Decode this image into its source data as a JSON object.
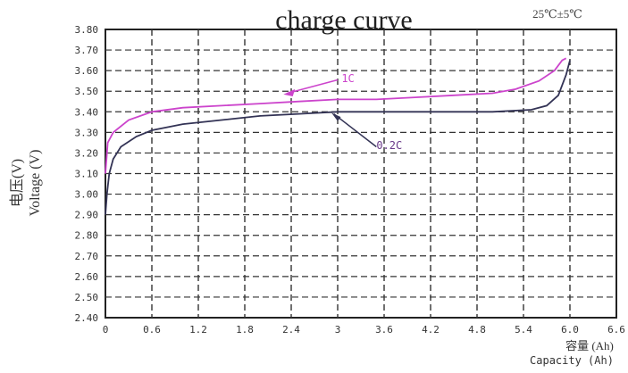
{
  "chart_data": {
    "type": "line",
    "title": "charge curve",
    "condition": "25℃±5℃",
    "ylabel_cn": "电压(V)",
    "ylabel_en": "Voltage (V)",
    "xlabel_cn": "容量 (Ah)",
    "xlabel_en": "Capacity (Ah)",
    "xlim": [
      0,
      6.6
    ],
    "ylim": [
      2.4,
      3.8
    ],
    "x_ticks": [
      "0",
      "0.6",
      "1.2",
      "1.8",
      "2.4",
      "3",
      "3.6",
      "4.2",
      "4.8",
      "5.4",
      "6.0",
      "6.6"
    ],
    "y_ticks": [
      "3.80",
      "3.70",
      "3.60",
      "3.50",
      "3.40",
      "3.30",
      "3.20",
      "3.10",
      "3.00",
      "2.90",
      "2.80",
      "2.70",
      "2.60",
      "2.50",
      "2.40"
    ],
    "grid": true,
    "series": [
      {
        "name": "1C",
        "color": "#cc44cc",
        "x": [
          0,
          0.03,
          0.1,
          0.3,
          0.6,
          1.0,
          1.5,
          2.0,
          2.5,
          3.0,
          3.5,
          4.0,
          4.5,
          5.0,
          5.3,
          5.6,
          5.8,
          5.9,
          5.95
        ],
        "y": [
          3.1,
          3.25,
          3.3,
          3.36,
          3.4,
          3.42,
          3.43,
          3.44,
          3.45,
          3.46,
          3.46,
          3.47,
          3.48,
          3.49,
          3.51,
          3.55,
          3.6,
          3.65,
          3.66
        ]
      },
      {
        "name": "0.2C",
        "color": "#333355",
        "x": [
          0,
          0.02,
          0.05,
          0.1,
          0.2,
          0.4,
          0.6,
          1.0,
          1.5,
          2.0,
          2.5,
          3.0,
          3.5,
          4.0,
          4.5,
          5.0,
          5.5,
          5.7,
          5.85,
          5.95,
          6.0
        ],
        "y": [
          2.9,
          3.0,
          3.1,
          3.17,
          3.23,
          3.28,
          3.31,
          3.34,
          3.36,
          3.38,
          3.39,
          3.4,
          3.4,
          3.4,
          3.4,
          3.4,
          3.41,
          3.43,
          3.48,
          3.58,
          3.65
        ]
      }
    ],
    "annotations": [
      {
        "text": "1C",
        "series": "1C"
      },
      {
        "text": "0.2C",
        "series": "0.2C"
      }
    ]
  }
}
